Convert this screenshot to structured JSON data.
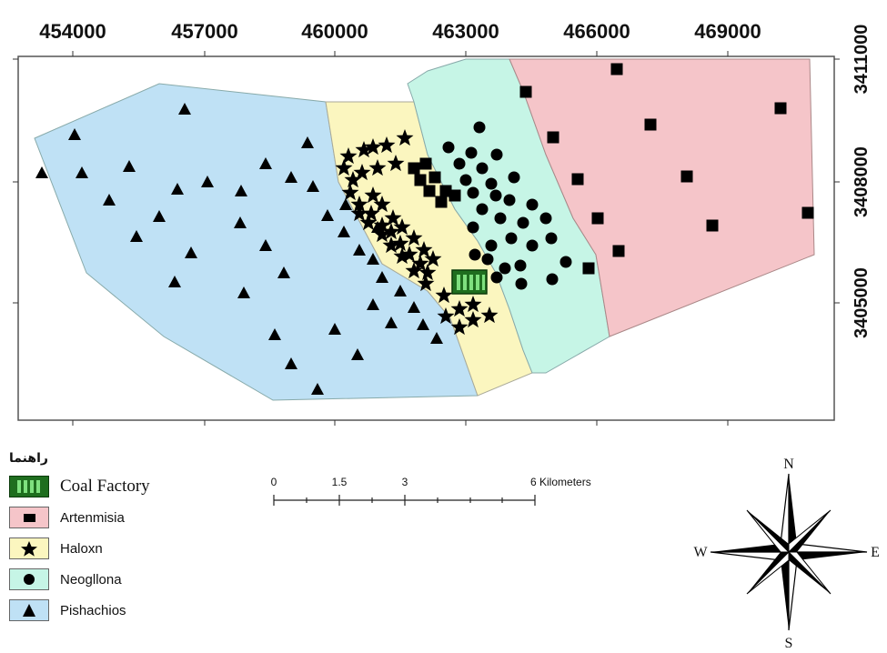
{
  "map": {
    "x_ticks": [
      "454000",
      "457000",
      "460000",
      "463000",
      "466000",
      "469000"
    ],
    "y_ticks": [
      "3411000",
      "3408000",
      "3405000"
    ]
  },
  "zones": [
    {
      "name": "Artenmisia",
      "color": "#f5c5c9"
    },
    {
      "name": "Haloxn",
      "color": "#fbf6bf"
    },
    {
      "name": "Neogllona",
      "color": "#c6f5e6"
    },
    {
      "name": "Pishachios",
      "color": "#bfe1f5"
    }
  ],
  "legend": {
    "title": "راهنما",
    "coal_factory": "Coal Factory",
    "items": [
      {
        "label": "Artenmisia",
        "color": "#f5c5c9",
        "symbol": "square-icon"
      },
      {
        "label": "Haloxn",
        "color": "#fbf6bf",
        "symbol": "star-icon"
      },
      {
        "label": "Neogllona",
        "color": "#c6f5e6",
        "symbol": "circle-icon"
      },
      {
        "label": "Pishachios",
        "color": "#bfe1f5",
        "symbol": "triangle-icon"
      }
    ]
  },
  "scale_bar": {
    "labels": [
      "0",
      "1.5",
      "3",
      "6 Kilometers"
    ]
  },
  "north_arrow": {
    "n": "N",
    "s": "S",
    "e": "E",
    "w": "W"
  }
}
